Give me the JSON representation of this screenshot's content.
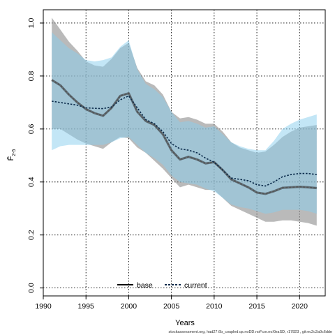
{
  "chart_data": {
    "type": "line",
    "title": "",
    "xlabel": "Years",
    "ylabel": "F̄",
    "ylabel_sub": "2-5",
    "xlim": [
      1990,
      2023
    ],
    "ylim": [
      -0.03,
      1.05
    ],
    "xticks": [
      1990,
      1995,
      2000,
      2005,
      2010,
      2015,
      2020
    ],
    "yticks": [
      0.0,
      0.2,
      0.4,
      0.6,
      0.8,
      1.0
    ],
    "ytick_labels": [
      "0.0",
      "0.2",
      "0.4",
      "0.6",
      "0.8",
      "1.0"
    ],
    "grid": true,
    "legend": {
      "position": "bottom-center",
      "entries": [
        "base",
        "current"
      ]
    },
    "x": [
      1991,
      1992,
      1993,
      1994,
      1995,
      1996,
      1997,
      1998,
      1999,
      2000,
      2001,
      2002,
      2003,
      2004,
      2005,
      2006,
      2007,
      2008,
      2009,
      2010,
      2011,
      2012,
      2013,
      2014,
      2015,
      2016,
      2017,
      2018,
      2019,
      2020,
      2021,
      2022
    ],
    "series": [
      {
        "name": "base",
        "color": "#555555",
        "band_color": "#8c8c8c",
        "values": [
          0.785,
          0.765,
          0.73,
          0.7,
          0.675,
          0.66,
          0.65,
          0.68,
          0.725,
          0.735,
          0.665,
          0.63,
          0.615,
          0.58,
          0.52,
          0.485,
          0.495,
          0.485,
          0.47,
          0.475,
          0.445,
          0.41,
          0.395,
          0.38,
          0.36,
          0.355,
          0.365,
          0.378,
          0.38,
          0.382,
          0.38,
          0.377
        ],
        "lower": [
          0.6,
          0.6,
          0.58,
          0.56,
          0.545,
          0.535,
          0.525,
          0.55,
          0.57,
          0.565,
          0.53,
          0.51,
          0.48,
          0.45,
          0.415,
          0.38,
          0.39,
          0.38,
          0.37,
          0.37,
          0.34,
          0.31,
          0.295,
          0.28,
          0.265,
          0.25,
          0.25,
          0.255,
          0.255,
          0.25,
          0.245,
          0.235
        ],
        "upper": [
          1.02,
          0.975,
          0.93,
          0.895,
          0.855,
          0.84,
          0.835,
          0.865,
          0.905,
          0.925,
          0.83,
          0.78,
          0.765,
          0.73,
          0.665,
          0.64,
          0.645,
          0.635,
          0.62,
          0.62,
          0.59,
          0.55,
          0.53,
          0.52,
          0.51,
          0.515,
          0.54,
          0.57,
          0.59,
          0.605,
          0.61,
          0.615
        ]
      },
      {
        "name": "current",
        "color": "#0a2a4a",
        "band_color": "#87cdee",
        "values": [
          0.705,
          0.7,
          0.695,
          0.69,
          0.68,
          0.678,
          0.677,
          0.683,
          0.71,
          0.725,
          0.68,
          0.635,
          0.62,
          0.59,
          0.545,
          0.525,
          0.52,
          0.51,
          0.49,
          0.475,
          0.445,
          0.415,
          0.41,
          0.405,
          0.39,
          0.385,
          0.4,
          0.42,
          0.428,
          0.432,
          0.432,
          0.428
        ],
        "lower": [
          0.52,
          0.535,
          0.54,
          0.54,
          0.54,
          0.54,
          0.54,
          0.55,
          0.565,
          0.57,
          0.54,
          0.51,
          0.49,
          0.465,
          0.425,
          0.4,
          0.395,
          0.39,
          0.375,
          0.365,
          0.34,
          0.315,
          0.305,
          0.3,
          0.29,
          0.28,
          0.285,
          0.295,
          0.295,
          0.295,
          0.29,
          0.28
        ],
        "upper": [
          0.965,
          0.935,
          0.905,
          0.885,
          0.86,
          0.855,
          0.86,
          0.87,
          0.91,
          0.935,
          0.825,
          0.77,
          0.75,
          0.72,
          0.665,
          0.625,
          0.63,
          0.62,
          0.605,
          0.61,
          0.58,
          0.55,
          0.535,
          0.525,
          0.52,
          0.52,
          0.555,
          0.6,
          0.62,
          0.635,
          0.645,
          0.655
        ]
      }
    ]
  },
  "footnote": "stockassessment.org, had27.6b_coupled.qs.noDD.noFcor.noXtraSD, r17823 , git:ec2c2a0c6dde"
}
